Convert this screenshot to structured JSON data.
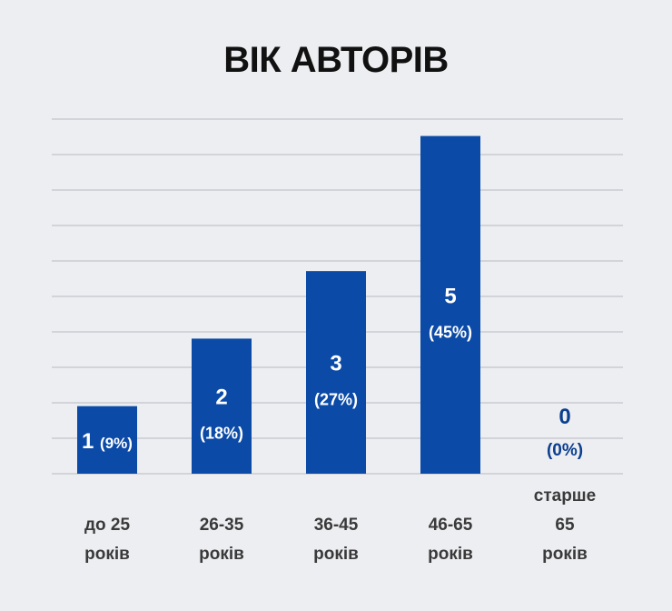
{
  "colors": {
    "bar": "#0b4aa6",
    "label_inside": "#ffffff",
    "label_outside": "#0b3f8f",
    "grid": "#c9ccd1",
    "background": "#eceef1"
  },
  "chart_data": {
    "type": "bar",
    "title": "ВІК АВТОРІВ",
    "categories": [
      [
        "до 25",
        "років"
      ],
      [
        "26-35",
        "років"
      ],
      [
        "36-45",
        "років"
      ],
      [
        "46-65",
        "років"
      ],
      [
        "старше",
        "65",
        "років"
      ]
    ],
    "values": [
      1,
      2,
      3,
      5,
      0
    ],
    "percent_labels": [
      "(9%)",
      "(18%)",
      "(27%)",
      "(45%)",
      "(0%)"
    ],
    "ylim": [
      0,
      5.25
    ],
    "gridlines": 10,
    "grid": true,
    "legend": "none"
  }
}
